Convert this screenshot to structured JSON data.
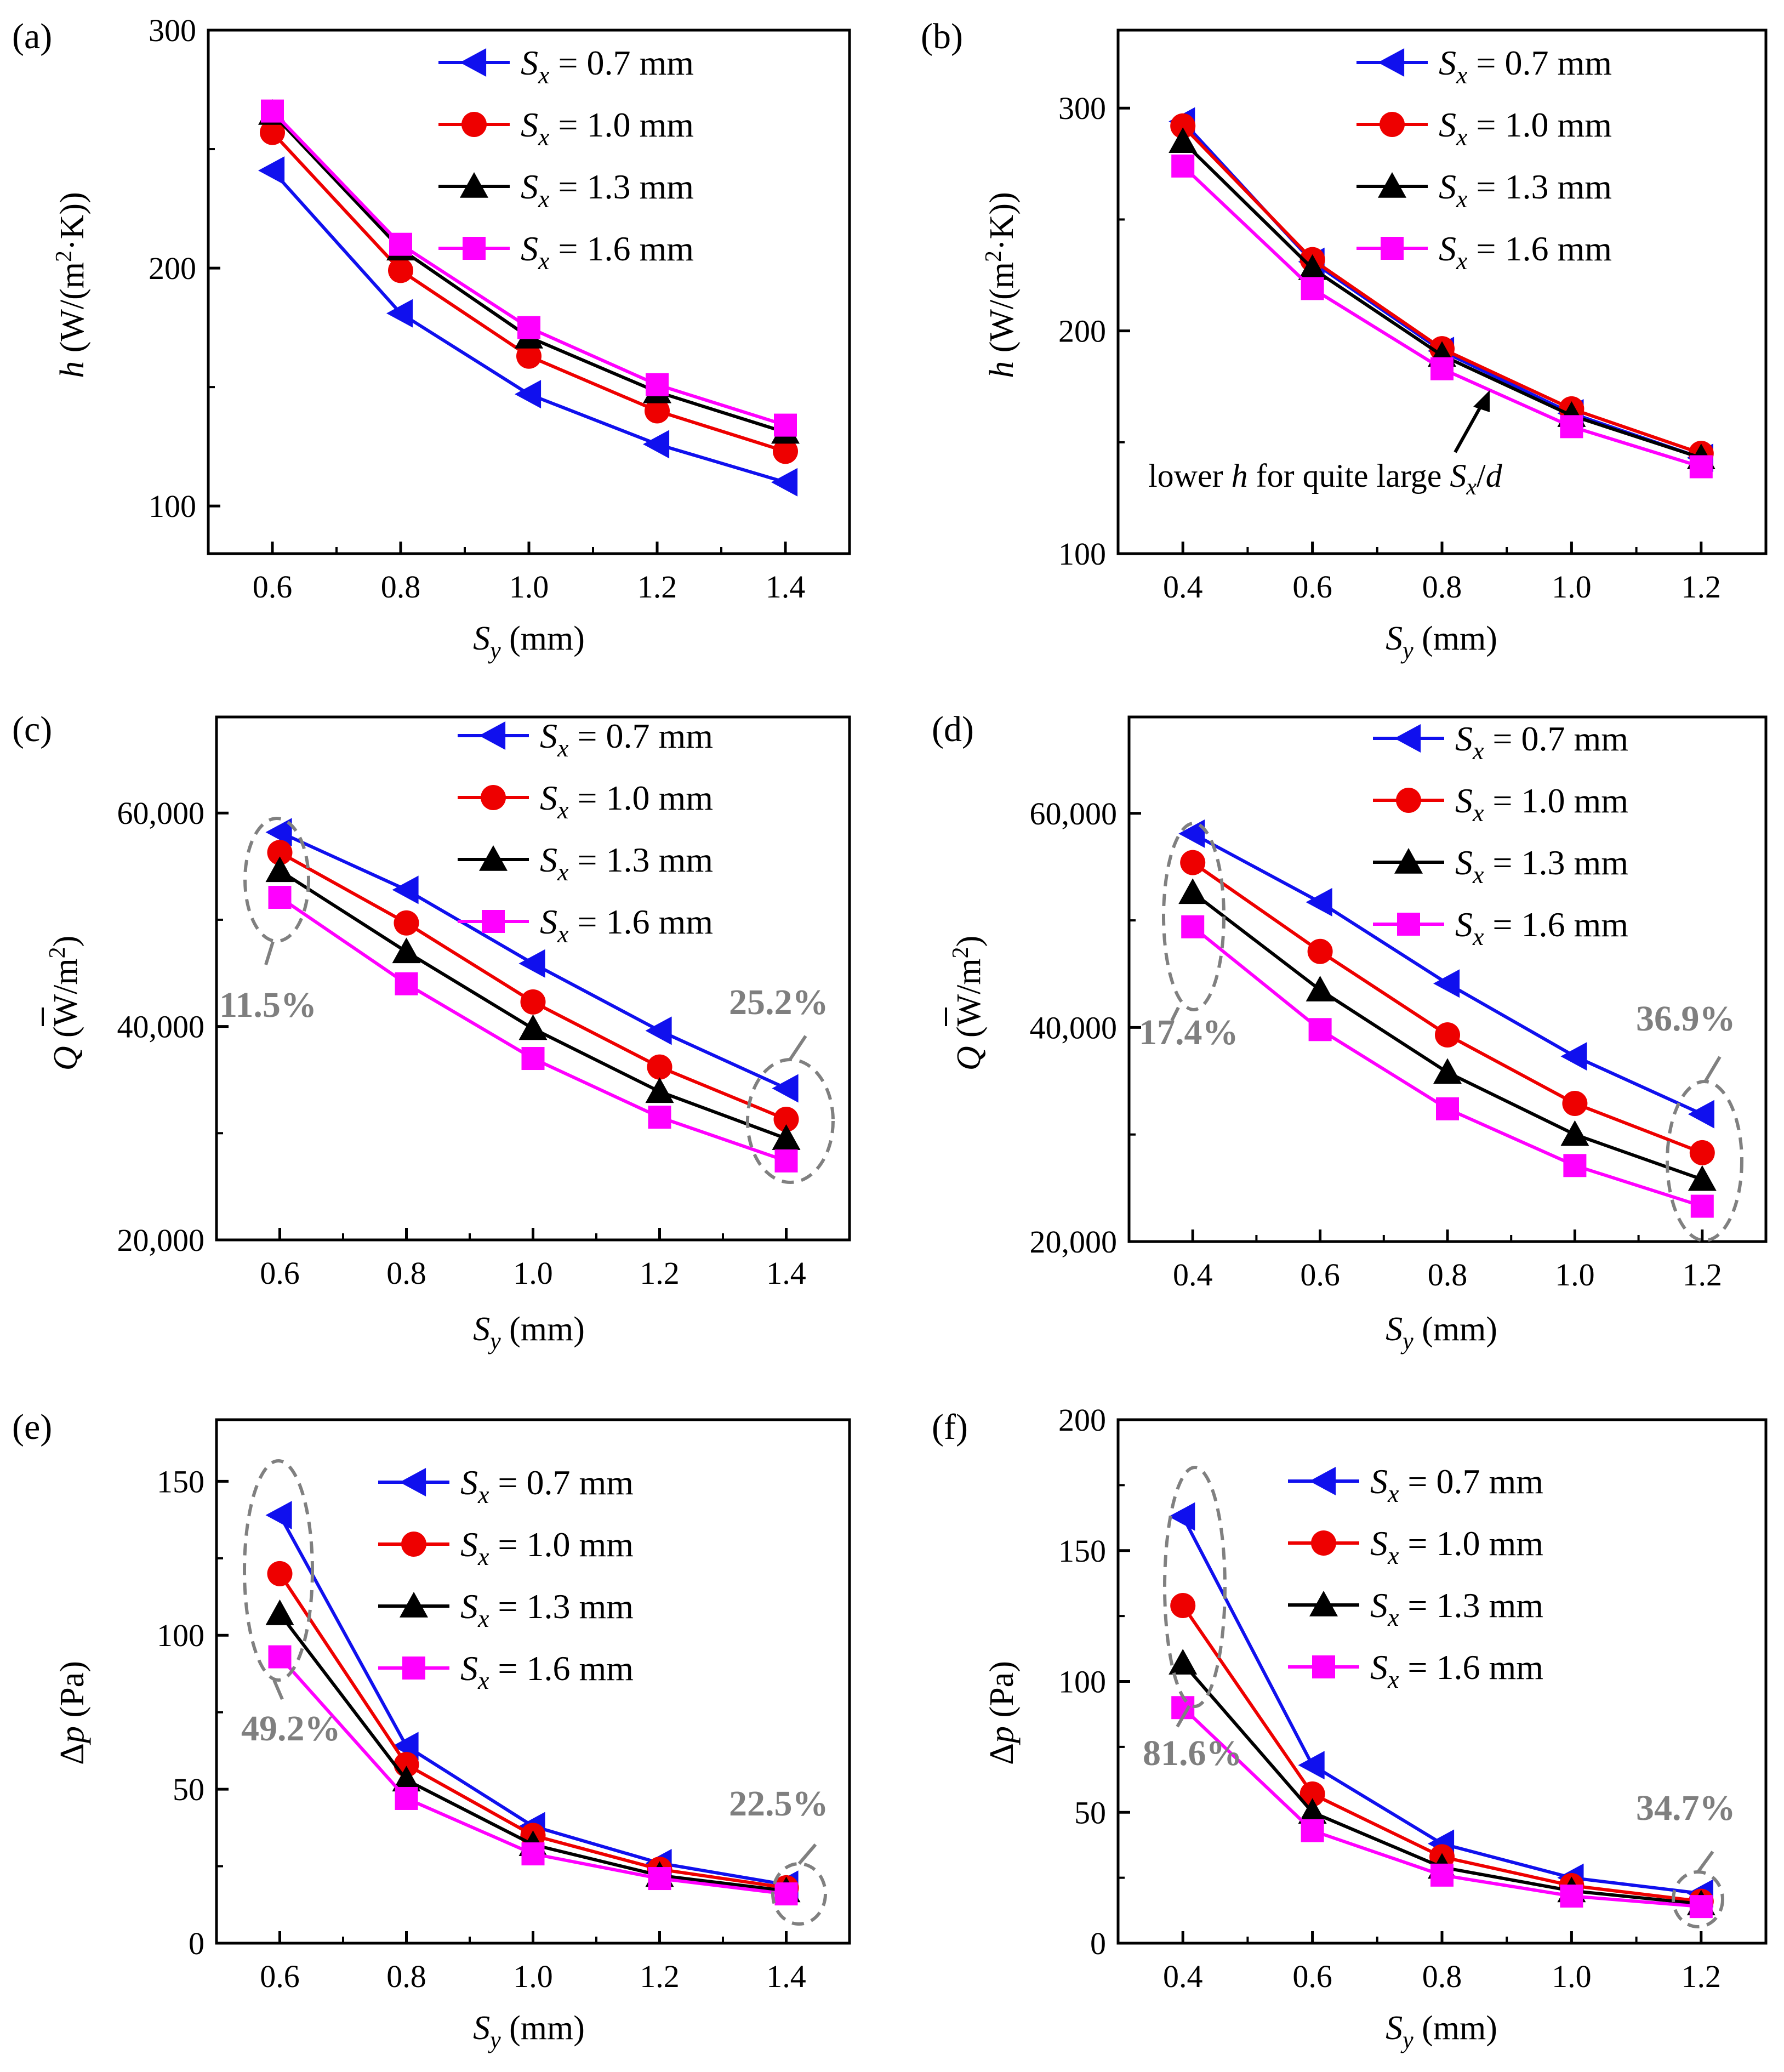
{
  "figure": {
    "legend_labels": [
      "S_x = 0.7 mm",
      "S_x = 1.0 mm",
      "S_x = 1.3 mm",
      "S_x = 1.6 mm"
    ],
    "series_colors": [
      "#1010ee",
      "#ee0000",
      "#000000",
      "#ff00ff"
    ],
    "series_markers": [
      "triangle-left",
      "circle",
      "triangle-up",
      "square"
    ]
  },
  "chart_data": [
    {
      "panel": "(a)",
      "type": "line",
      "xlabel": "S_y (mm)",
      "ylabel": "h (W/(m²·K))",
      "xlim": [
        0.5,
        1.5
      ],
      "ylim": [
        80,
        300
      ],
      "xticks": [
        0.6,
        0.8,
        1.0,
        1.2,
        1.4
      ],
      "xtick_labels": [
        "0.6",
        "0.8",
        "1.0",
        "1.2",
        "1.4"
      ],
      "yticks": [
        100,
        200,
        300
      ],
      "ytick_labels": [
        "100",
        "200",
        "300"
      ],
      "x": [
        0.6,
        0.8,
        1.0,
        1.2,
        1.4
      ],
      "series": [
        {
          "name": "S_x = 0.7 mm",
          "values": [
            241,
            181,
            147,
            126,
            110
          ]
        },
        {
          "name": "S_x = 1.0 mm",
          "values": [
            257,
            199,
            163,
            140,
            123
          ]
        },
        {
          "name": "S_x = 1.3 mm",
          "values": [
            265,
            208,
            171,
            148,
            131
          ]
        },
        {
          "name": "S_x = 1.6 mm",
          "values": [
            266,
            210,
            175,
            151,
            134
          ]
        }
      ]
    },
    {
      "panel": "(b)",
      "type": "line",
      "xlabel": "S_y (mm)",
      "ylabel": "h (W/(m²·K))",
      "xlim": [
        0.3,
        1.3
      ],
      "ylim": [
        100,
        335
      ],
      "xticks": [
        0.4,
        0.6,
        0.8,
        1.0,
        1.2
      ],
      "xtick_labels": [
        "0.4",
        "0.6",
        "0.8",
        "1.0",
        "1.2"
      ],
      "yticks": [
        100,
        200,
        300
      ],
      "ytick_labels": [
        "100",
        "200",
        "300"
      ],
      "x": [
        0.4,
        0.6,
        0.8,
        1.0,
        1.2
      ],
      "series": [
        {
          "name": "S_x = 0.7 mm",
          "values": [
            294,
            231,
            191,
            163,
            143
          ]
        },
        {
          "name": "S_x = 1.0 mm",
          "values": [
            292,
            232,
            192,
            165,
            145
          ]
        },
        {
          "name": "S_x = 1.3 mm",
          "values": [
            285,
            228,
            189,
            162,
            143
          ]
        },
        {
          "name": "S_x = 1.6 mm",
          "values": [
            274,
            219,
            183,
            157,
            139
          ]
        }
      ],
      "annotation": "lower h for quite large S_x/d"
    },
    {
      "panel": "(c)",
      "type": "line",
      "xlabel": "S_y (mm)",
      "ylabel": "Q̄ (W/m²)",
      "xlim": [
        0.5,
        1.5
      ],
      "ylim": [
        20000,
        69000
      ],
      "xticks": [
        0.6,
        0.8,
        1.0,
        1.2,
        1.4
      ],
      "xtick_labels": [
        "0.6",
        "0.8",
        "1.0",
        "1.2",
        "1.4"
      ],
      "yticks": [
        20000,
        40000,
        60000
      ],
      "ytick_labels": [
        "20,000",
        "40,000",
        "60,000"
      ],
      "x": [
        0.6,
        0.8,
        1.0,
        1.2,
        1.4
      ],
      "series": [
        {
          "name": "S_x = 0.7 mm",
          "values": [
            58200,
            52800,
            45900,
            39600,
            34200
          ]
        },
        {
          "name": "S_x = 1.0 mm",
          "values": [
            56300,
            49700,
            42300,
            36200,
            31300
          ]
        },
        {
          "name": "S_x = 1.3 mm",
          "values": [
            54600,
            47000,
            39800,
            33900,
            29500
          ]
        },
        {
          "name": "S_x = 1.6 mm",
          "values": [
            52100,
            44000,
            37000,
            31500,
            27400
          ]
        }
      ],
      "annotations": [
        "11.5%",
        "25.2%"
      ]
    },
    {
      "panel": "(d)",
      "type": "line",
      "xlabel": "S_y (mm)",
      "ylabel": "Q̄ (W/m²)",
      "xlim": [
        0.3,
        1.3
      ],
      "ylim": [
        20000,
        69000
      ],
      "xticks": [
        0.4,
        0.6,
        0.8,
        1.0,
        1.2
      ],
      "xtick_labels": [
        "0.4",
        "0.6",
        "0.8",
        "1.0",
        "1.2"
      ],
      "yticks": [
        20000,
        40000,
        60000
      ],
      "ytick_labels": [
        "20,000",
        "40,000",
        "60,000"
      ],
      "x": [
        0.4,
        0.6,
        0.8,
        1.0,
        1.2
      ],
      "series": [
        {
          "name": "S_x = 0.7 mm",
          "values": [
            58100,
            51700,
            44100,
            37300,
            31900
          ]
        },
        {
          "name": "S_x = 1.0 mm",
          "values": [
            55400,
            47100,
            39300,
            32900,
            28300
          ]
        },
        {
          "name": "S_x = 1.3 mm",
          "values": [
            52600,
            43500,
            35800,
            30000,
            25800
          ]
        },
        {
          "name": "S_x = 1.6 mm",
          "values": [
            49400,
            39800,
            32400,
            27100,
            23300
          ]
        }
      ],
      "annotations": [
        "17.4%",
        "36.9%"
      ]
    },
    {
      "panel": "(e)",
      "type": "line",
      "xlabel": "S_y (mm)",
      "ylabel": "Δp (Pa)",
      "xlim": [
        0.5,
        1.5
      ],
      "ylim": [
        0,
        170
      ],
      "xticks": [
        0.6,
        0.8,
        1.0,
        1.2,
        1.4
      ],
      "xtick_labels": [
        "0.6",
        "0.8",
        "1.0",
        "1.2",
        "1.4"
      ],
      "yticks": [
        0,
        50,
        100,
        150
      ],
      "ytick_labels": [
        "0",
        "50",
        "100",
        "150"
      ],
      "x": [
        0.6,
        0.8,
        1.0,
        1.2,
        1.4
      ],
      "series": [
        {
          "name": "S_x = 0.7 mm",
          "values": [
            139,
            64,
            38,
            26,
            19
          ]
        },
        {
          "name": "S_x = 1.0 mm",
          "values": [
            120,
            58,
            35,
            24,
            18
          ]
        },
        {
          "name": "S_x = 1.3 mm",
          "values": [
            107,
            53,
            32,
            22,
            17
          ]
        },
        {
          "name": "S_x = 1.6 mm",
          "values": [
            93,
            47,
            29,
            21,
            16
          ]
        }
      ],
      "annotations": [
        "49.2%",
        "22.5%"
      ]
    },
    {
      "panel": "(f)",
      "type": "line",
      "xlabel": "S_y (mm)",
      "ylabel": "Δp (Pa)",
      "xlim": [
        0.3,
        1.3
      ],
      "ylim": [
        0,
        200
      ],
      "xticks": [
        0.4,
        0.6,
        0.8,
        1.0,
        1.2
      ],
      "xtick_labels": [
        "0.4",
        "0.6",
        "0.8",
        "1.0",
        "1.2"
      ],
      "yticks": [
        0,
        50,
        100,
        150,
        200
      ],
      "ytick_labels": [
        "0",
        "50",
        "100",
        "150",
        "200"
      ],
      "x": [
        0.4,
        0.6,
        0.8,
        1.0,
        1.2
      ],
      "series": [
        {
          "name": "S_x = 0.7 mm",
          "values": [
            163,
            68,
            38,
            25,
            19
          ]
        },
        {
          "name": "S_x = 1.0 mm",
          "values": [
            129,
            57,
            33,
            22,
            16
          ]
        },
        {
          "name": "S_x = 1.3 mm",
          "values": [
            107,
            50,
            29,
            20,
            15
          ]
        },
        {
          "name": "S_x = 1.6 mm",
          "values": [
            90,
            43,
            26,
            18,
            14
          ]
        }
      ],
      "annotations": [
        "81.6%",
        "34.7%"
      ]
    }
  ]
}
